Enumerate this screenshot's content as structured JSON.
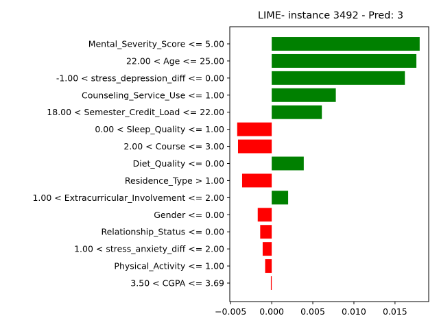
{
  "chart_data": {
    "type": "bar",
    "orientation": "horizontal",
    "title": "LIME- instance 3492 - Pred: 3",
    "xlabel": "",
    "ylabel": "",
    "xlim": [
      -0.0051,
      0.0191
    ],
    "xticks": [
      -0.005,
      0.0,
      0.005,
      0.01,
      0.015
    ],
    "xtick_labels": [
      "−0.005",
      "0.000",
      "0.005",
      "0.010",
      "0.015"
    ],
    "grid": false,
    "positive_color": "#008000",
    "negative_color": "#ff0000",
    "categories": [
      "Mental_Severity_Score <= 5.00",
      "22.00 < Age <= 25.00",
      "-1.00 < stress_depression_diff <= 0.00",
      "Counseling_Service_Use <= 1.00",
      "18.00 < Semester_Credit_Load <= 22.00",
      "0.00 < Sleep_Quality <= 1.00",
      "2.00 < Course <= 3.00",
      "Diet_Quality <= 0.00",
      "Residence_Type > 1.00",
      "1.00 < Extracurricular_Involvement <= 2.00",
      "Gender <= 0.00",
      "Relationship_Status <= 0.00",
      "1.00 < stress_anxiety_diff <= 2.00",
      "Physical_Activity <= 1.00",
      "3.50 < CGPA <= 3.69"
    ],
    "values": [
      0.018,
      0.0176,
      0.0162,
      0.0078,
      0.0061,
      -0.0042,
      -0.0041,
      0.0039,
      -0.0036,
      0.002,
      -0.0017,
      -0.0014,
      -0.0011,
      -0.0008,
      -0.0001
    ]
  }
}
